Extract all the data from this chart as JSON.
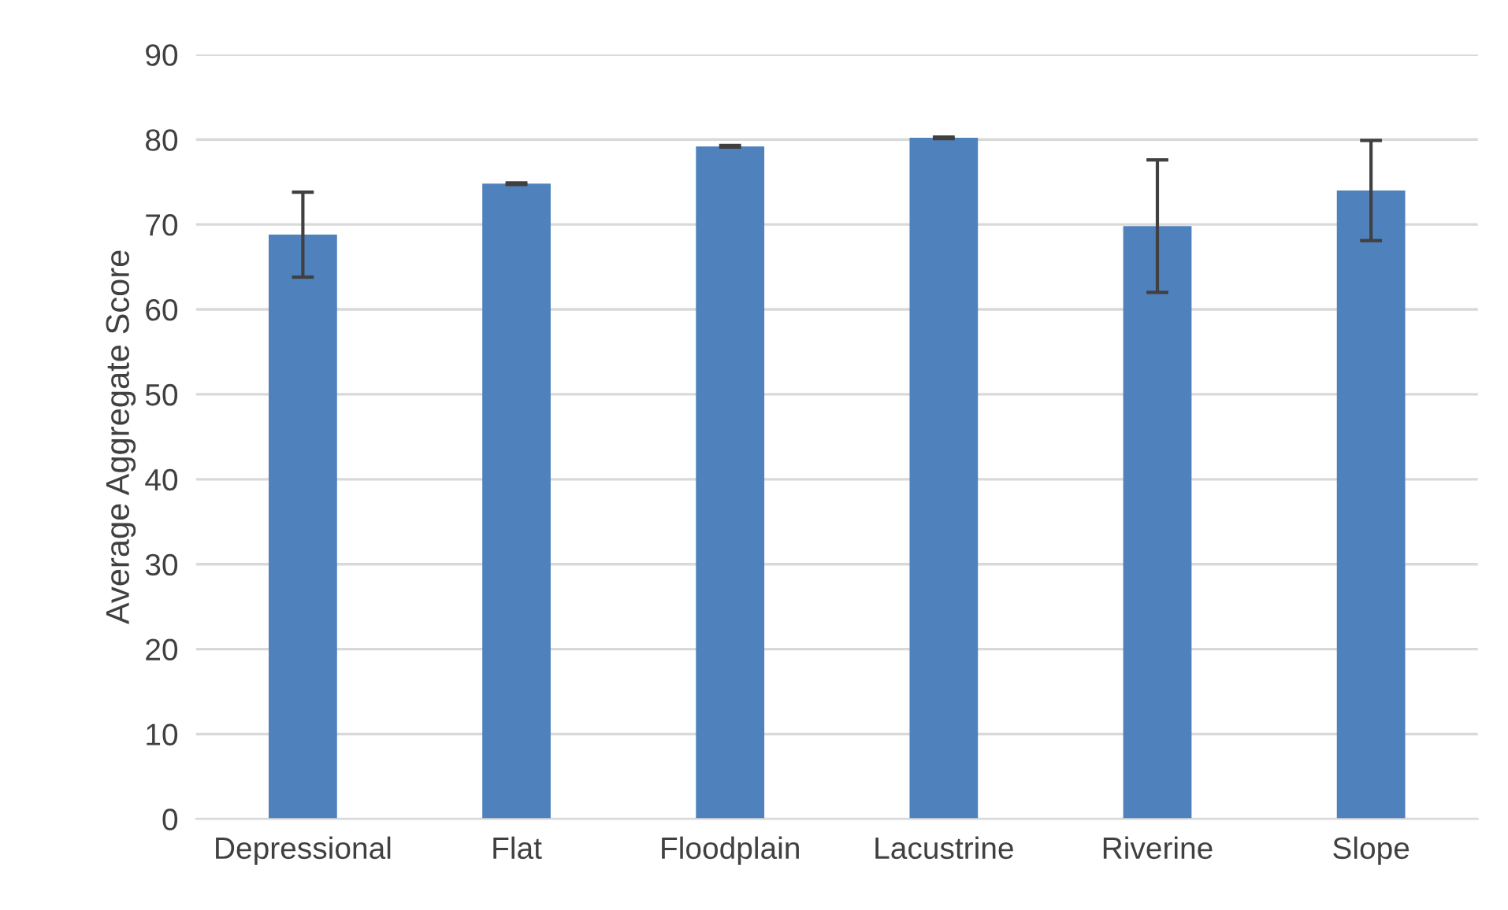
{
  "chart_data": {
    "type": "bar",
    "ylabel": "Average Aggregate Score",
    "categories": [
      "Depressional",
      "Flat",
      "Floodplain",
      "Lacustrine",
      "Riverine",
      "Slope"
    ],
    "values": [
      68.8,
      74.8,
      79.2,
      80.2,
      69.8,
      74.0
    ],
    "errors": [
      5.0,
      0.1,
      0.1,
      0.1,
      7.8,
      5.9
    ],
    "color": "#4f81bd",
    "ylim": [
      0,
      90
    ],
    "yticks": [
      0,
      10,
      20,
      30,
      40,
      50,
      60,
      70,
      80,
      90
    ],
    "grid": "y"
  }
}
